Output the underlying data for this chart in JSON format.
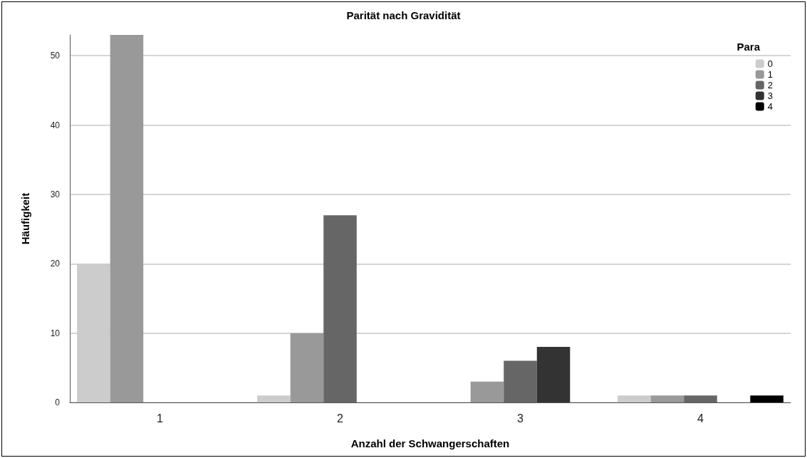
{
  "chart_data": {
    "type": "bar",
    "title": "Parität nach Gravidität",
    "xlabel": "Anzahl der Schwangerschaften",
    "ylabel": "Häufigkeit",
    "legend_title": "Para",
    "categories": [
      "1",
      "2",
      "3",
      "4"
    ],
    "series": [
      {
        "name": "0",
        "color": "#cccccc",
        "values": [
          20,
          1,
          null,
          1
        ]
      },
      {
        "name": "1",
        "color": "#999999",
        "values": [
          53,
          10,
          3,
          1
        ]
      },
      {
        "name": "2",
        "color": "#666666",
        "values": [
          null,
          27,
          6,
          1
        ]
      },
      {
        "name": "3",
        "color": "#333333",
        "values": [
          null,
          null,
          8,
          null
        ]
      },
      {
        "name": "4",
        "color": "#000000",
        "values": [
          null,
          null,
          null,
          1
        ]
      }
    ],
    "ylim": [
      0,
      53
    ],
    "yticks": [
      0,
      10,
      20,
      30,
      40,
      50
    ],
    "grid": "y",
    "legend": "top right"
  }
}
